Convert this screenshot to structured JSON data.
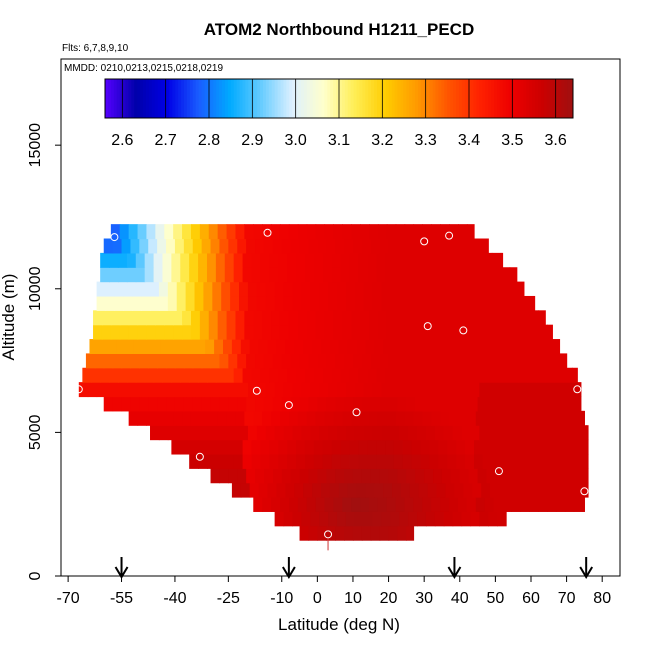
{
  "chart_data": {
    "type": "heatmap",
    "title": "ATOM2 Northbound H1211_PECD",
    "flights_label": "Flts: 6,7,8,9,10",
    "dates_label": "MMDD: 0210,0213,0215,0218,0219",
    "xlabel": "Latitude (deg N)",
    "ylabel": "Altitude (m)",
    "xlim": [
      -72,
      85
    ],
    "ylim": [
      0,
      18000
    ],
    "x_ticks": [
      -70,
      -55,
      -40,
      -25,
      -10,
      0,
      10,
      20,
      30,
      40,
      50,
      60,
      70,
      80
    ],
    "x_tick_labels": [
      "-70",
      "-55",
      "-40",
      "-25",
      "-10",
      "0",
      "10",
      "20",
      "30",
      "40",
      "50",
      "60",
      "70",
      "80"
    ],
    "y_ticks": [
      0,
      5000,
      10000,
      15000
    ],
    "y_tick_labels": [
      "0",
      "5000",
      "10000",
      "15000"
    ],
    "colorbar": {
      "min": 2.56,
      "max": 3.64,
      "tick_values": [
        2.6,
        2.7,
        2.8,
        2.9,
        3.0,
        3.1,
        3.2,
        3.3,
        3.4,
        3.5,
        3.6
      ],
      "tick_labels": [
        "2.6",
        "2.7",
        "2.8",
        "2.9",
        "3.0",
        "3.1",
        "3.2",
        "3.3",
        "3.4",
        "3.5",
        "3.6"
      ],
      "colors": [
        "#5500ff",
        "#0000aa",
        "#0000e6",
        "#1a5cff",
        "#00aaff",
        "#66ccff",
        "#ddf0ff",
        "#ffffcc",
        "#ffee55",
        "#ffcc00",
        "#ff9900",
        "#ff5500",
        "#ff2200",
        "#ee0000",
        "#cc0000",
        "#a01010"
      ]
    },
    "coverage_envelope": [
      {
        "alt": 1500,
        "lat_min": -5,
        "lat_max": 27
      },
      {
        "alt": 2000,
        "lat_min": -12,
        "lat_max": 53
      },
      {
        "alt": 2500,
        "lat_min": -18,
        "lat_max": 75
      },
      {
        "alt": 3000,
        "lat_min": -24,
        "lat_max": 76
      },
      {
        "alt": 3500,
        "lat_min": -30,
        "lat_max": 76
      },
      {
        "alt": 4000,
        "lat_min": -36,
        "lat_max": 76
      },
      {
        "alt": 4500,
        "lat_min": -41,
        "lat_max": 76
      },
      {
        "alt": 5000,
        "lat_min": -47,
        "lat_max": 76
      },
      {
        "alt": 5500,
        "lat_min": -53,
        "lat_max": 75
      },
      {
        "alt": 6000,
        "lat_min": -60,
        "lat_max": 74
      },
      {
        "alt": 6500,
        "lat_min": -67,
        "lat_max": 74
      },
      {
        "alt": 7000,
        "lat_min": -66,
        "lat_max": 73
      },
      {
        "alt": 7500,
        "lat_min": -65,
        "lat_max": 70
      },
      {
        "alt": 8000,
        "lat_min": -64,
        "lat_max": 68
      },
      {
        "alt": 8500,
        "lat_min": -63,
        "lat_max": 66
      },
      {
        "alt": 9000,
        "lat_min": -63,
        "lat_max": 64
      },
      {
        "alt": 9500,
        "lat_min": -62,
        "lat_max": 61
      },
      {
        "alt": 10000,
        "lat_min": -62,
        "lat_max": 58
      },
      {
        "alt": 10500,
        "lat_min": -61,
        "lat_max": 56
      },
      {
        "alt": 11000,
        "lat_min": -61,
        "lat_max": 52
      },
      {
        "alt": 11500,
        "lat_min": -60,
        "lat_max": 48
      },
      {
        "alt": 12000,
        "lat_min": -58,
        "lat_max": 44
      }
    ],
    "gradient_field": {
      "description_values": "approximate PECD value field",
      "high_lat_center": [
        10,
        2500
      ],
      "low_lat_anchor": [
        -60,
        12000
      ]
    },
    "sample_points": [
      {
        "lat": -57,
        "alt": 11800
      },
      {
        "lat": -14,
        "alt": 11950
      },
      {
        "lat": 30,
        "alt": 11650
      },
      {
        "lat": 37,
        "alt": 11850
      },
      {
        "lat": 31,
        "alt": 8700
      },
      {
        "lat": 41,
        "alt": 8550
      },
      {
        "lat": -67,
        "alt": 6500
      },
      {
        "lat": -17,
        "alt": 6450
      },
      {
        "lat": -8,
        "alt": 5950
      },
      {
        "lat": 11,
        "alt": 5700
      },
      {
        "lat": 73,
        "alt": 6500
      },
      {
        "lat": -33,
        "alt": 4150
      },
      {
        "lat": 51,
        "alt": 3650
      },
      {
        "lat": 75,
        "alt": 2950
      },
      {
        "lat": 3,
        "alt": 1450
      }
    ],
    "arrows": [
      -55,
      -8,
      38.5,
      75.5
    ]
  }
}
